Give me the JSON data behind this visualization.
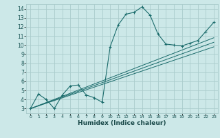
{
  "title": "",
  "xlabel": "Humidex (Indice chaleur)",
  "ylabel": "",
  "bg_color": "#cce8e8",
  "grid_color": "#aacccc",
  "line_color": "#1a6b6b",
  "xlim": [
    -0.5,
    23.5
  ],
  "ylim": [
    2.5,
    14.5
  ],
  "xticks": [
    0,
    1,
    2,
    3,
    4,
    5,
    6,
    7,
    8,
    9,
    10,
    11,
    12,
    13,
    14,
    15,
    16,
    17,
    18,
    19,
    20,
    21,
    22,
    23
  ],
  "yticks": [
    3,
    4,
    5,
    6,
    7,
    8,
    9,
    10,
    11,
    12,
    13,
    14
  ],
  "line1_x": [
    0,
    1,
    2,
    3,
    4,
    5,
    6,
    7,
    8,
    9,
    10,
    11,
    12,
    13,
    14,
    15,
    16,
    17,
    18,
    19,
    20,
    21,
    22,
    23
  ],
  "line1_y": [
    3.0,
    4.6,
    4.0,
    3.0,
    4.5,
    5.5,
    5.6,
    4.5,
    4.2,
    3.7,
    9.8,
    12.2,
    13.4,
    13.6,
    14.2,
    13.3,
    11.2,
    10.1,
    10.0,
    9.9,
    10.2,
    10.5,
    11.5,
    12.5
  ],
  "line2_x": [
    0,
    23
  ],
  "line2_y": [
    3.0,
    10.8
  ],
  "line3_x": [
    0,
    23
  ],
  "line3_y": [
    3.0,
    10.3
  ],
  "line4_x": [
    0,
    23
  ],
  "line4_y": [
    3.0,
    9.8
  ]
}
